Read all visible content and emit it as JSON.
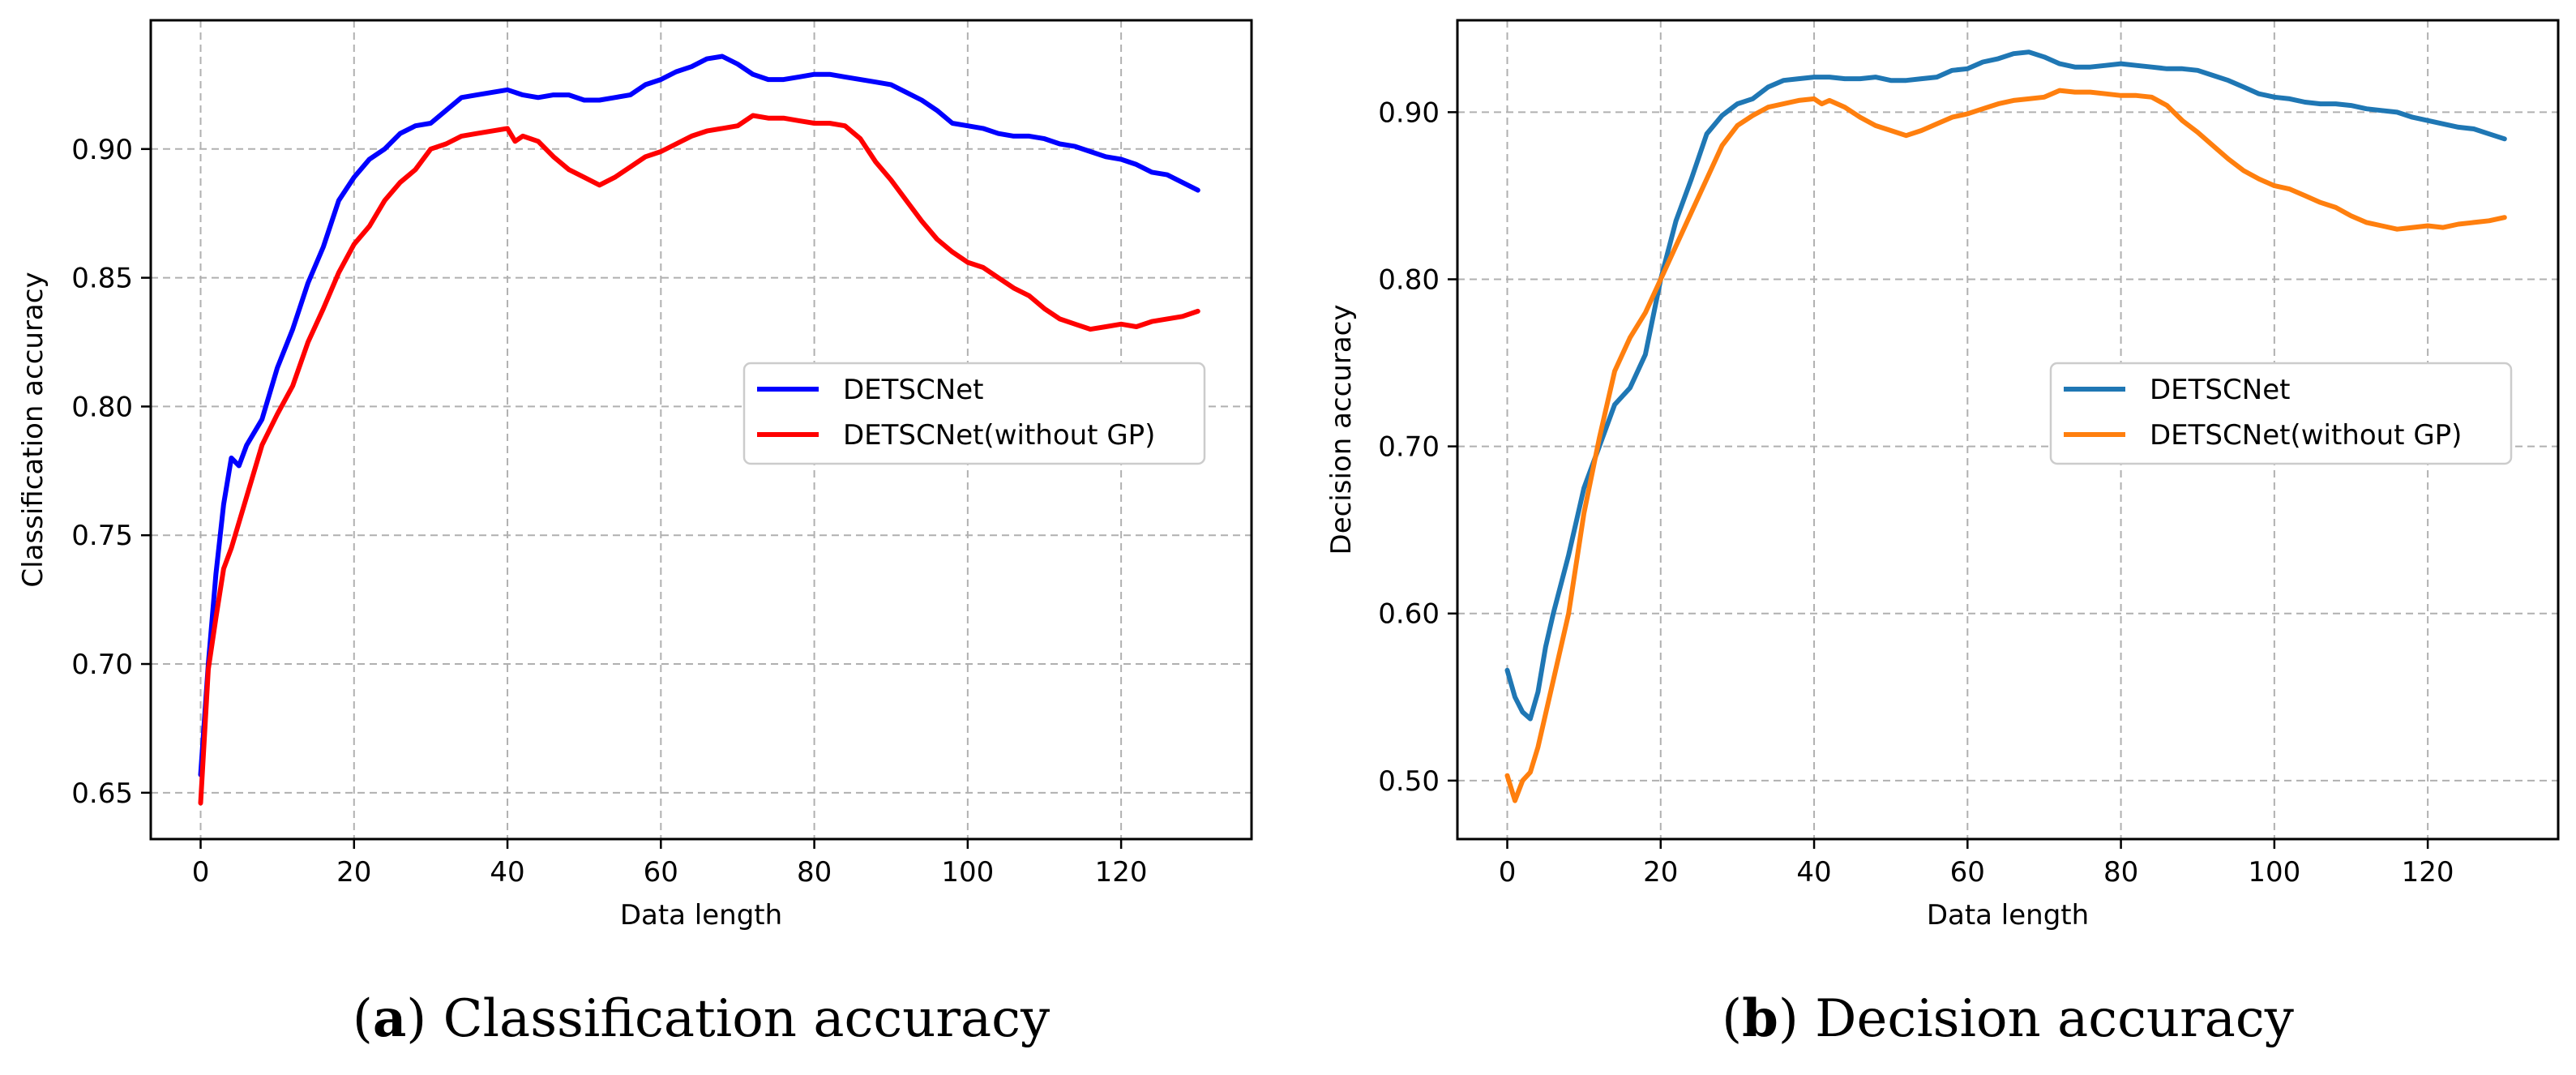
{
  "chart_data": [
    {
      "type": "line",
      "panel": "a",
      "caption_letter": "a",
      "caption_text": "Classification accuracy",
      "title": "",
      "xlabel": "Data length",
      "ylabel": "Classification accuracy",
      "xlim": [
        -6.5,
        137
      ],
      "ylim": [
        0.632,
        0.95
      ],
      "xticks": [
        0,
        20,
        40,
        60,
        80,
        100,
        120
      ],
      "xtick_labels": [
        "0",
        "20",
        "40",
        "60",
        "80",
        "100",
        "120"
      ],
      "yticks": [
        0.65,
        0.7,
        0.75,
        0.8,
        0.85,
        0.9
      ],
      "ytick_labels": [
        "0.65",
        "0.70",
        "0.75",
        "0.80",
        "0.85",
        "0.90"
      ],
      "grid": true,
      "legend_position": "center-right",
      "series": [
        {
          "name": "DETSCNet",
          "color": "#0000ff",
          "x": [
            0,
            1,
            2,
            3,
            4,
            5,
            6,
            8,
            10,
            12,
            14,
            16,
            18,
            20,
            22,
            24,
            26,
            28,
            30,
            32,
            34,
            36,
            38,
            40,
            42,
            44,
            46,
            48,
            50,
            52,
            54,
            56,
            58,
            60,
            62,
            64,
            66,
            68,
            70,
            72,
            74,
            76,
            78,
            80,
            82,
            84,
            86,
            88,
            90,
            92,
            94,
            96,
            98,
            100,
            102,
            104,
            106,
            108,
            110,
            112,
            114,
            116,
            118,
            120,
            122,
            124,
            126,
            128,
            130
          ],
          "y": [
            0.657,
            0.7,
            0.735,
            0.762,
            0.78,
            0.777,
            0.785,
            0.795,
            0.815,
            0.83,
            0.848,
            0.862,
            0.88,
            0.889,
            0.896,
            0.9,
            0.906,
            0.909,
            0.91,
            0.915,
            0.92,
            0.921,
            0.922,
            0.923,
            0.921,
            0.92,
            0.921,
            0.921,
            0.919,
            0.919,
            0.92,
            0.921,
            0.925,
            0.927,
            0.93,
            0.932,
            0.935,
            0.936,
            0.933,
            0.929,
            0.927,
            0.927,
            0.928,
            0.929,
            0.929,
            0.928,
            0.927,
            0.926,
            0.925,
            0.922,
            0.919,
            0.915,
            0.91,
            0.909,
            0.908,
            0.906,
            0.905,
            0.905,
            0.904,
            0.902,
            0.901,
            0.899,
            0.897,
            0.896,
            0.894,
            0.891,
            0.89,
            0.887,
            0.884
          ]
        },
        {
          "name": "DETSCNet(without GP)",
          "color": "#ff0000",
          "x": [
            0,
            1,
            2,
            3,
            4,
            6,
            8,
            10,
            12,
            14,
            16,
            18,
            20,
            22,
            24,
            26,
            28,
            30,
            32,
            34,
            36,
            38,
            40,
            41,
            42,
            44,
            46,
            48,
            50,
            52,
            54,
            56,
            58,
            60,
            62,
            64,
            66,
            68,
            70,
            72,
            74,
            76,
            78,
            80,
            82,
            84,
            86,
            88,
            90,
            92,
            94,
            96,
            98,
            100,
            102,
            104,
            106,
            108,
            110,
            112,
            114,
            116,
            118,
            120,
            122,
            124,
            126,
            128,
            130
          ],
          "y": [
            0.646,
            0.698,
            0.718,
            0.737,
            0.745,
            0.765,
            0.785,
            0.797,
            0.808,
            0.825,
            0.838,
            0.852,
            0.863,
            0.87,
            0.88,
            0.887,
            0.892,
            0.9,
            0.902,
            0.905,
            0.906,
            0.907,
            0.908,
            0.903,
            0.905,
            0.903,
            0.897,
            0.892,
            0.889,
            0.886,
            0.889,
            0.893,
            0.897,
            0.899,
            0.902,
            0.905,
            0.907,
            0.908,
            0.909,
            0.913,
            0.912,
            0.912,
            0.911,
            0.91,
            0.91,
            0.909,
            0.904,
            0.895,
            0.888,
            0.88,
            0.872,
            0.865,
            0.86,
            0.856,
            0.854,
            0.85,
            0.846,
            0.843,
            0.838,
            0.834,
            0.832,
            0.83,
            0.831,
            0.832,
            0.831,
            0.833,
            0.834,
            0.835,
            0.837
          ]
        }
      ]
    },
    {
      "type": "line",
      "panel": "b",
      "caption_letter": "b",
      "caption_text": "Decision accuracy",
      "title": "",
      "xlabel": "Data length",
      "ylabel": "Decision accuracy",
      "xlim": [
        -6.5,
        137
      ],
      "ylim": [
        0.465,
        0.955
      ],
      "xticks": [
        0,
        20,
        40,
        60,
        80,
        100,
        120
      ],
      "xtick_labels": [
        "0",
        "20",
        "40",
        "60",
        "80",
        "100",
        "120"
      ],
      "yticks": [
        0.5,
        0.6,
        0.7,
        0.8,
        0.9
      ],
      "ytick_labels": [
        "0.50",
        "0.60",
        "0.70",
        "0.80",
        "0.90"
      ],
      "grid": true,
      "legend_position": "center-right",
      "series": [
        {
          "name": "DETSCNet",
          "color": "#1f77b4",
          "x": [
            0,
            1,
            2,
            3,
            4,
            5,
            6,
            8,
            10,
            12,
            14,
            16,
            18,
            20,
            22,
            24,
            26,
            28,
            30,
            32,
            34,
            36,
            38,
            40,
            42,
            44,
            46,
            48,
            50,
            52,
            54,
            56,
            58,
            60,
            62,
            64,
            66,
            68,
            70,
            72,
            74,
            76,
            78,
            80,
            82,
            84,
            86,
            88,
            90,
            92,
            94,
            96,
            98,
            100,
            102,
            104,
            106,
            108,
            110,
            112,
            114,
            116,
            118,
            120,
            122,
            124,
            126,
            128,
            130
          ],
          "y": [
            0.566,
            0.55,
            0.541,
            0.537,
            0.553,
            0.58,
            0.6,
            0.635,
            0.675,
            0.7,
            0.725,
            0.735,
            0.755,
            0.8,
            0.835,
            0.86,
            0.887,
            0.898,
            0.905,
            0.908,
            0.915,
            0.919,
            0.92,
            0.921,
            0.921,
            0.92,
            0.92,
            0.921,
            0.919,
            0.919,
            0.92,
            0.921,
            0.925,
            0.926,
            0.93,
            0.932,
            0.935,
            0.936,
            0.933,
            0.929,
            0.927,
            0.927,
            0.928,
            0.929,
            0.928,
            0.927,
            0.926,
            0.926,
            0.925,
            0.922,
            0.919,
            0.915,
            0.911,
            0.909,
            0.908,
            0.906,
            0.905,
            0.905,
            0.904,
            0.902,
            0.901,
            0.9,
            0.897,
            0.895,
            0.893,
            0.891,
            0.89,
            0.887,
            0.884
          ]
        },
        {
          "name": "DETSCNet(without GP)",
          "color": "#ff7f0e",
          "x": [
            0,
            1,
            2,
            3,
            4,
            6,
            8,
            10,
            12,
            14,
            16,
            18,
            20,
            22,
            24,
            26,
            28,
            30,
            32,
            34,
            36,
            38,
            40,
            41,
            42,
            44,
            46,
            48,
            50,
            52,
            54,
            56,
            58,
            60,
            62,
            64,
            66,
            68,
            70,
            72,
            74,
            76,
            78,
            80,
            82,
            84,
            86,
            88,
            90,
            92,
            94,
            96,
            98,
            100,
            102,
            104,
            106,
            108,
            110,
            112,
            114,
            116,
            118,
            120,
            122,
            124,
            126,
            128,
            130
          ],
          "y": [
            0.503,
            0.488,
            0.5,
            0.505,
            0.52,
            0.56,
            0.6,
            0.66,
            0.705,
            0.745,
            0.765,
            0.78,
            0.8,
            0.82,
            0.84,
            0.86,
            0.88,
            0.892,
            0.898,
            0.903,
            0.905,
            0.907,
            0.908,
            0.905,
            0.907,
            0.903,
            0.897,
            0.892,
            0.889,
            0.886,
            0.889,
            0.893,
            0.897,
            0.899,
            0.902,
            0.905,
            0.907,
            0.908,
            0.909,
            0.913,
            0.912,
            0.912,
            0.911,
            0.91,
            0.91,
            0.909,
            0.904,
            0.895,
            0.888,
            0.88,
            0.872,
            0.865,
            0.86,
            0.856,
            0.854,
            0.85,
            0.846,
            0.843,
            0.838,
            0.834,
            0.832,
            0.83,
            0.831,
            0.832,
            0.831,
            0.833,
            0.834,
            0.835,
            0.837
          ]
        }
      ]
    }
  ]
}
